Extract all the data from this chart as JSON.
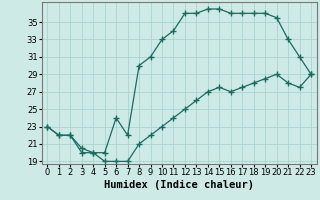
{
  "title": "",
  "xlabel": "Humidex (Indice chaleur)",
  "ylabel": "",
  "background_color": "#ceeae6",
  "grid_color": "#aad4d0",
  "line_color": "#1a6b62",
  "line1_x": [
    0,
    1,
    2,
    3,
    4,
    5,
    6,
    7,
    8,
    9,
    10,
    11,
    12,
    13,
    14,
    15,
    16,
    17,
    18,
    19,
    20,
    21,
    22,
    23
  ],
  "line1_y": [
    23,
    22,
    22,
    20,
    20,
    19,
    19,
    19,
    21,
    22,
    23,
    24,
    25,
    26,
    27,
    27.5,
    27,
    27.5,
    28,
    28.5,
    29,
    28,
    27.5,
    29
  ],
  "line2_x": [
    0,
    1,
    2,
    3,
    4,
    5,
    6,
    7,
    8,
    9,
    10,
    11,
    12,
    13,
    14,
    15,
    16,
    17,
    18,
    19,
    20,
    21,
    22,
    23
  ],
  "line2_y": [
    23,
    22,
    22,
    20.5,
    20,
    20,
    24,
    22,
    30,
    31,
    33,
    34,
    36,
    36,
    36.5,
    36.5,
    36,
    36,
    36,
    36,
    35.5,
    33,
    31,
    29
  ],
  "ylim_min": 19,
  "ylim_max": 37,
  "xlim_min": 0,
  "xlim_max": 23,
  "yticks": [
    19,
    21,
    23,
    25,
    27,
    29,
    31,
    33,
    35
  ],
  "xticks": [
    0,
    1,
    2,
    3,
    4,
    5,
    6,
    7,
    8,
    9,
    10,
    11,
    12,
    13,
    14,
    15,
    16,
    17,
    18,
    19,
    20,
    21,
    22,
    23
  ],
  "tick_fontsize": 6,
  "label_fontsize": 7.5
}
